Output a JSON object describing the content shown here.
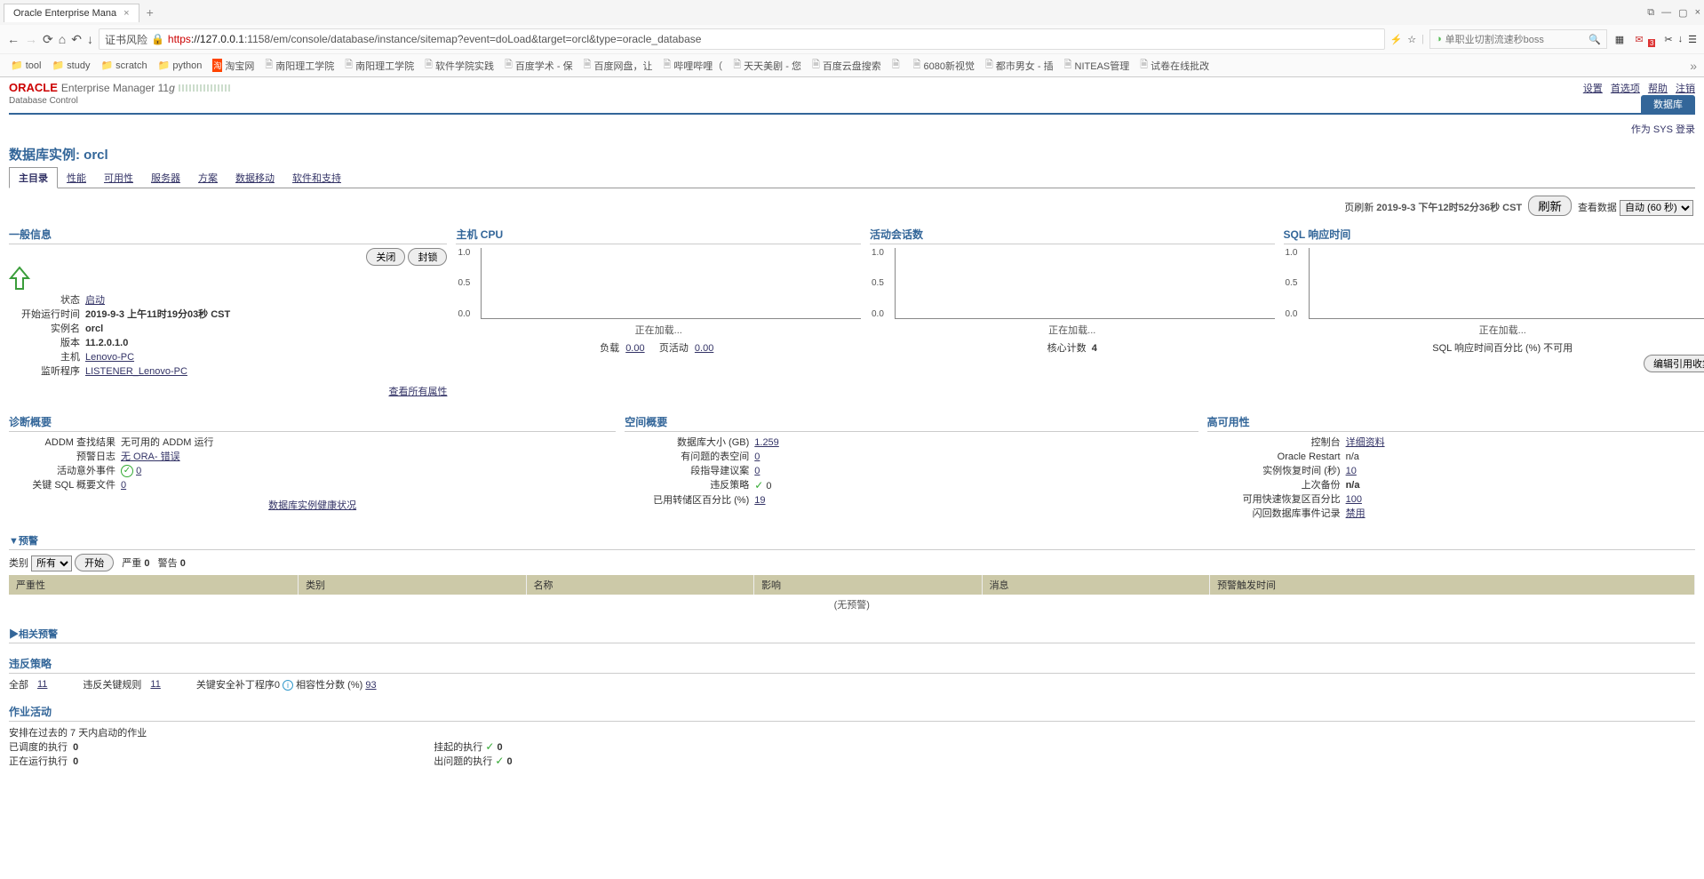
{
  "browser": {
    "tab_title": "Oracle Enterprise Mana",
    "url_prefix": "https",
    "url_host": "://127.0.0.1",
    "url_path": ":1158/em/console/database/instance/sitemap?event=doLoad&target=orcl&type=oracle_database",
    "cert_label": "证书风险",
    "search_placeholder": "单职业切割流速秒boss",
    "badge": "3"
  },
  "bookmarks": [
    {
      "label": "tool",
      "type": "folder"
    },
    {
      "label": "study",
      "type": "folder"
    },
    {
      "label": "scratch",
      "type": "folder"
    },
    {
      "label": "python",
      "type": "folder"
    },
    {
      "label": "淘宝网",
      "type": "icon"
    },
    {
      "label": "南阳理工学院",
      "type": "page"
    },
    {
      "label": "南阳理工学院",
      "type": "page"
    },
    {
      "label": "软件学院实践",
      "type": "page"
    },
    {
      "label": "百度学术 - 保",
      "type": "page"
    },
    {
      "label": "百度网盘，让",
      "type": "page"
    },
    {
      "label": "哔哩哔哩（",
      "type": "page"
    },
    {
      "label": "天天美剧 - 您",
      "type": "page"
    },
    {
      "label": "百度云盘搜索",
      "type": "page"
    },
    {
      "label": "",
      "type": "page"
    },
    {
      "label": "6080新视觉",
      "type": "page"
    },
    {
      "label": "都市男女 - 插",
      "type": "page"
    },
    {
      "label": "NITEAS管理",
      "type": "page"
    },
    {
      "label": "试卷在线批改",
      "type": "page"
    }
  ],
  "header": {
    "oracle": "ORACLE",
    "product": "Enterprise Manager 11",
    "g": "g",
    "db_control": "Database Control",
    "links": {
      "settings": "设置",
      "prefs": "首选项",
      "help": "帮助",
      "logout": "注销"
    },
    "db_tab": "数据库",
    "login_as": "作为 SYS 登录"
  },
  "page": {
    "title": "数据库实例: orcl",
    "tabs": [
      "主目录",
      "性能",
      "可用性",
      "服务器",
      "方案",
      "数据移动",
      "软件和支持"
    ],
    "refresh_label": "页刷新",
    "refresh_time": "2019-9-3 下午12时52分36秒 CST",
    "refresh_btn": "刷新",
    "view_label": "查看数据",
    "view_value": "自动 (60 秒)"
  },
  "general": {
    "heading": "一般信息",
    "btn_close": "关闭",
    "btn_block": "封锁",
    "rows": {
      "status_l": "状态",
      "status_v": "启动",
      "start_l": "开始运行时间",
      "start_v": "2019-9-3 上午11时19分03秒 CST",
      "inst_l": "实例名",
      "inst_v": "orcl",
      "ver_l": "版本",
      "ver_v": "11.2.0.1.0",
      "host_l": "主机",
      "host_v": "Lenovo-PC",
      "listener_l": "监听程序",
      "listener_v": "LISTENER_Lenovo-PC"
    },
    "view_all": "查看所有属性"
  },
  "cpu": {
    "heading": "主机 CPU",
    "loading": "正在加载...",
    "load_l": "负载",
    "load_v": "0.00",
    "page_l": "页活动",
    "page_v": "0.00"
  },
  "sessions": {
    "heading": "活动会话数",
    "loading": "正在加载...",
    "cores_l": "核心计数",
    "cores_v": "4"
  },
  "sql": {
    "heading": "SQL 响应时间",
    "loading": "正在加载...",
    "pct_l": "SQL 响应时间百分比 (%)",
    "pct_v": "不可用",
    "btn": "编辑引用收集"
  },
  "chart_axis": {
    "y0": "0.0",
    "y1": "0.5",
    "y2": "1.0"
  },
  "diag": {
    "heading": "诊断概要",
    "addm_l": "ADDM 查找结果",
    "addm_v": "无可用的 ADDM 运行",
    "alert_l": "预警日志",
    "alert_v": "无 ORA- 错误",
    "incident_l": "活动意外事件",
    "incident_v": "0",
    "sql_l": "关键 SQL 概要文件",
    "sql_v": "0",
    "health": "数据库实例健康状况"
  },
  "space": {
    "heading": "空间概要",
    "size_l": "数据库大小 (GB)",
    "size_v": "1.259",
    "problem_l": "有问题的表空间",
    "problem_v": "0",
    "seg_l": "段指导建议案",
    "seg_v": "0",
    "vio_l": "违反策略",
    "vio_v": "0",
    "dump_l": "已用转储区百分比 (%)",
    "dump_v": "19"
  },
  "ha": {
    "heading": "高可用性",
    "console_l": "控制台",
    "console_v": "详细资料",
    "restart_l": "Oracle Restart",
    "restart_v": "n/a",
    "recover_l": "实例恢复时间 (秒)",
    "recover_v": "10",
    "backup_l": "上次备份",
    "backup_v": "n/a",
    "flash_l": "可用快速恢复区百分比",
    "flash_v": "100",
    "fb_l": "闪回数据库事件记录",
    "fb_v": "禁用"
  },
  "alerts": {
    "heading": "▼预警",
    "cat_l": "类别",
    "cat_v": "所有",
    "go": "开始",
    "sev_l": "严重",
    "sev_v": "0",
    "warn_l": "警告",
    "warn_v": "0",
    "cols": [
      "严重性",
      "类别",
      "名称",
      "影响",
      "消息",
      "预警触发时间"
    ],
    "empty": "(无预警)"
  },
  "related": {
    "heading": "▶相关预警"
  },
  "vio": {
    "heading": "违反策略",
    "all_l": "全部",
    "all_v": "11",
    "rule_l": "违反关键规则",
    "rule_v": "11",
    "patch_l": "关键安全补丁程序",
    "patch_v": "0",
    "compat_l": "相容性分数 (%)",
    "compat_v": "93"
  },
  "jobs": {
    "heading": "作业活动",
    "sub": "安排在过去的 7 天内启动的作业",
    "sched_l": "已调度的执行",
    "sched_v": "0",
    "run_l": "正在运行执行",
    "run_v": "0",
    "susp_l": "挂起的执行",
    "susp_v": "0",
    "prob_l": "出问题的执行",
    "prob_v": "0"
  }
}
